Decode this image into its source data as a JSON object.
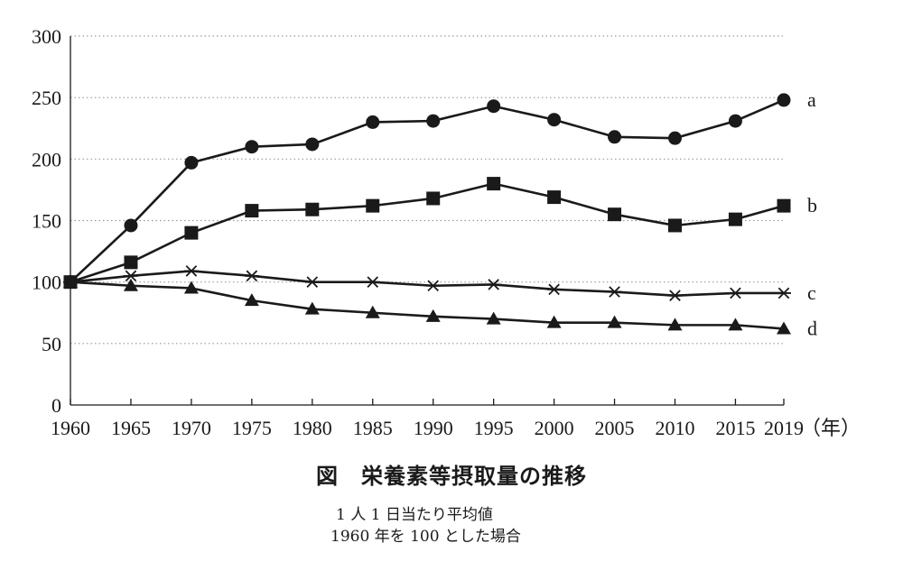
{
  "chart_data": {
    "type": "line",
    "x": [
      1960,
      1965,
      1970,
      1975,
      1980,
      1985,
      1990,
      1995,
      2000,
      2005,
      2010,
      2015,
      2019
    ],
    "x_tick_labels": [
      "1960",
      "1965",
      "1970",
      "1975",
      "1980",
      "1985",
      "1990",
      "1995",
      "2000",
      "2005",
      "2010",
      "2015",
      "2019"
    ],
    "x_unit": "（年）",
    "ylim": [
      0,
      300
    ],
    "y_ticks": [
      0,
      50,
      100,
      150,
      200,
      250,
      300
    ],
    "grid": "horizontal-dotted",
    "series": [
      {
        "name": "a",
        "marker": "circle",
        "values": [
          100,
          146,
          197,
          210,
          212,
          230,
          231,
          243,
          232,
          218,
          217,
          231,
          248
        ]
      },
      {
        "name": "b",
        "marker": "square",
        "values": [
          100,
          116,
          140,
          158,
          159,
          162,
          168,
          180,
          169,
          155,
          146,
          151,
          162
        ]
      },
      {
        "name": "c",
        "marker": "asterisk",
        "values": [
          100,
          105,
          109,
          105,
          100,
          100,
          97,
          98,
          94,
          92,
          89,
          91,
          91
        ]
      },
      {
        "name": "d",
        "marker": "triangle",
        "values": [
          100,
          97,
          95,
          85,
          78,
          75,
          72,
          70,
          67,
          67,
          65,
          65,
          62
        ]
      }
    ],
    "title": "図　栄養素等摂取量の推移",
    "notes": [
      "1 人 1 日当たり平均値",
      "1960 年を 100 とした場合"
    ],
    "colors": {
      "line": "#1a1a1a",
      "grid": "#9a9a9a"
    }
  }
}
